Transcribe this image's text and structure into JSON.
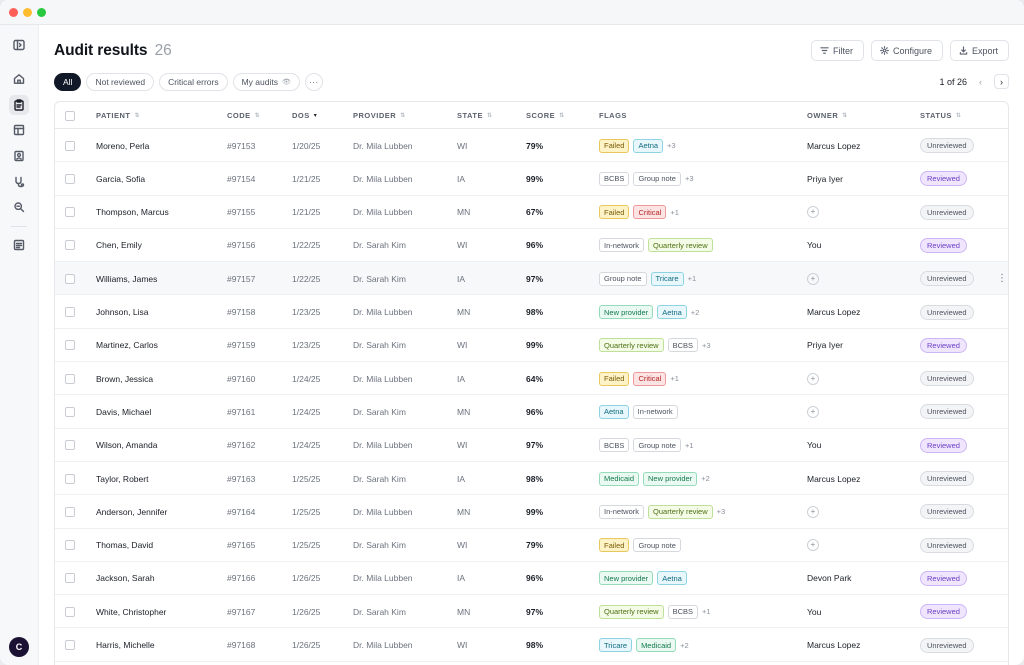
{
  "page": {
    "title": "Audit results",
    "count": "26",
    "actions": [
      {
        "label": "Filter",
        "icon": "filter-icon"
      },
      {
        "label": "Configure",
        "icon": "gear-icon"
      },
      {
        "label": "Export",
        "icon": "download-icon"
      }
    ],
    "filters": [
      {
        "label": "All",
        "active": true
      },
      {
        "label": "Not reviewed",
        "active": false
      },
      {
        "label": "Critical errors",
        "active": false
      },
      {
        "label": "My audits",
        "active": false,
        "icon": "eye-icon"
      }
    ],
    "more_label": "···",
    "pager": {
      "text": "1 of 26",
      "prev": "‹",
      "next": "›"
    }
  },
  "sidebar": {
    "items": [
      "sidebar-toggle-icon",
      "home-icon",
      "clipboard-icon",
      "layout-icon",
      "document-icon",
      "stethoscope-icon",
      "search-icon",
      "list-icon"
    ],
    "avatar_initial": "C"
  },
  "table": {
    "columns": [
      "PATIENT",
      "CODE",
      "DOS",
      "PROVIDER",
      "STATE",
      "SCORE",
      "FLAGS",
      "OWNER",
      "STATUS"
    ],
    "rows": [
      {
        "patient": "Moreno, Perla",
        "code": "#97153",
        "dos": "1/20/25",
        "provider": "Dr. Mila Lubben",
        "state": "WI",
        "score": "79%",
        "flags": [
          {
            "t": "Failed",
            "k": "failed"
          },
          {
            "t": "Aetna",
            "k": "aetna"
          }
        ],
        "more": "+3",
        "owner": "Marcus Lopez",
        "status": "Unreviewed"
      },
      {
        "patient": "Garcia, Sofia",
        "code": "#97154",
        "dos": "1/21/25",
        "provider": "Dr. Mila Lubben",
        "state": "IA",
        "score": "99%",
        "flags": [
          {
            "t": "BCBS",
            "k": "plain"
          },
          {
            "t": "Group note",
            "k": "plain"
          }
        ],
        "more": "+3",
        "owner": "Priya Iyer",
        "status": "Reviewed"
      },
      {
        "patient": "Thompson, Marcus",
        "code": "#97155",
        "dos": "1/21/25",
        "provider": "Dr. Mila Lubben",
        "state": "MN",
        "score": "67%",
        "flags": [
          {
            "t": "Failed",
            "k": "failed"
          },
          {
            "t": "Critical",
            "k": "critical"
          }
        ],
        "more": "+1",
        "owner": "",
        "status": "Unreviewed"
      },
      {
        "patient": "Chen, Emily",
        "code": "#97156",
        "dos": "1/22/25",
        "provider": "Dr. Sarah Kim",
        "state": "WI",
        "score": "96%",
        "flags": [
          {
            "t": "In-network",
            "k": "plain"
          },
          {
            "t": "Quarterly review",
            "k": "quarterly"
          }
        ],
        "more": "",
        "owner": "You",
        "status": "Reviewed"
      },
      {
        "patient": "Williams, James",
        "code": "#97157",
        "dos": "1/22/25",
        "provider": "Dr. Sarah Kim",
        "state": "IA",
        "score": "97%",
        "flags": [
          {
            "t": "Group note",
            "k": "plain"
          },
          {
            "t": "Tricare",
            "k": "tricare"
          }
        ],
        "more": "+1",
        "owner": "",
        "status": "Unreviewed",
        "hover": true
      },
      {
        "patient": "Johnson, Lisa",
        "code": "#97158",
        "dos": "1/23/25",
        "provider": "Dr. Mila Lubben",
        "state": "MN",
        "score": "98%",
        "flags": [
          {
            "t": "New provider",
            "k": "newprov"
          },
          {
            "t": "Aetna",
            "k": "aetna"
          }
        ],
        "more": "+2",
        "owner": "Marcus Lopez",
        "status": "Unreviewed"
      },
      {
        "patient": "Martinez, Carlos",
        "code": "#97159",
        "dos": "1/23/25",
        "provider": "Dr. Sarah Kim",
        "state": "WI",
        "score": "99%",
        "flags": [
          {
            "t": "Quarterly review",
            "k": "quarterly"
          },
          {
            "t": "BCBS",
            "k": "plain"
          }
        ],
        "more": "+3",
        "owner": "Priya Iyer",
        "status": "Reviewed"
      },
      {
        "patient": "Brown, Jessica",
        "code": "#97160",
        "dos": "1/24/25",
        "provider": "Dr. Mila Lubben",
        "state": "IA",
        "score": "64%",
        "flags": [
          {
            "t": "Failed",
            "k": "failed"
          },
          {
            "t": "Critical",
            "k": "critical"
          }
        ],
        "more": "+1",
        "owner": "",
        "status": "Unreviewed"
      },
      {
        "patient": "Davis, Michael",
        "code": "#97161",
        "dos": "1/24/25",
        "provider": "Dr. Sarah Kim",
        "state": "MN",
        "score": "96%",
        "flags": [
          {
            "t": "Aetna",
            "k": "aetna"
          },
          {
            "t": "In-network",
            "k": "plain"
          }
        ],
        "more": "",
        "owner": "",
        "status": "Unreviewed"
      },
      {
        "patient": "Wilson, Amanda",
        "code": "#97162",
        "dos": "1/24/25",
        "provider": "Dr. Mila Lubben",
        "state": "WI",
        "score": "97%",
        "flags": [
          {
            "t": "BCBS",
            "k": "plain"
          },
          {
            "t": "Group note",
            "k": "plain"
          }
        ],
        "more": "+1",
        "owner": "You",
        "status": "Reviewed"
      },
      {
        "patient": "Taylor, Robert",
        "code": "#97163",
        "dos": "1/25/25",
        "provider": "Dr. Sarah Kim",
        "state": "IA",
        "score": "98%",
        "flags": [
          {
            "t": "Medicaid",
            "k": "medicaid"
          },
          {
            "t": "New provider",
            "k": "newprov"
          }
        ],
        "more": "+2",
        "owner": "Marcus Lopez",
        "status": "Unreviewed"
      },
      {
        "patient": "Anderson, Jennifer",
        "code": "#97164",
        "dos": "1/25/25",
        "provider": "Dr. Mila Lubben",
        "state": "MN",
        "score": "99%",
        "flags": [
          {
            "t": "In-network",
            "k": "plain"
          },
          {
            "t": "Quarterly review",
            "k": "quarterly"
          }
        ],
        "more": "+3",
        "owner": "",
        "status": "Unreviewed"
      },
      {
        "patient": "Thomas, David",
        "code": "#97165",
        "dos": "1/25/25",
        "provider": "Dr. Sarah Kim",
        "state": "WI",
        "score": "79%",
        "flags": [
          {
            "t": "Failed",
            "k": "failed"
          },
          {
            "t": "Group note",
            "k": "plain"
          }
        ],
        "more": "",
        "owner": "",
        "status": "Unreviewed"
      },
      {
        "patient": "Jackson, Sarah",
        "code": "#97166",
        "dos": "1/26/25",
        "provider": "Dr. Mila Lubben",
        "state": "IA",
        "score": "96%",
        "flags": [
          {
            "t": "New provider",
            "k": "newprov"
          },
          {
            "t": "Aetna",
            "k": "aetna"
          }
        ],
        "more": "",
        "owner": "Devon Park",
        "status": "Reviewed"
      },
      {
        "patient": "White, Christopher",
        "code": "#97167",
        "dos": "1/26/25",
        "provider": "Dr. Sarah Kim",
        "state": "MN",
        "score": "97%",
        "flags": [
          {
            "t": "Quarterly review",
            "k": "quarterly"
          },
          {
            "t": "BCBS",
            "k": "plain"
          }
        ],
        "more": "+1",
        "owner": "You",
        "status": "Reviewed"
      },
      {
        "patient": "Harris, Michelle",
        "code": "#97168",
        "dos": "1/26/25",
        "provider": "Dr. Mila Lubben",
        "state": "WI",
        "score": "98%",
        "flags": [
          {
            "t": "Tricare",
            "k": "tricare"
          },
          {
            "t": "Medicaid",
            "k": "medicaid"
          }
        ],
        "more": "+2",
        "owner": "Marcus Lopez",
        "status": "Unreviewed"
      }
    ],
    "row_menu": "⋮",
    "owner_add": "+"
  }
}
